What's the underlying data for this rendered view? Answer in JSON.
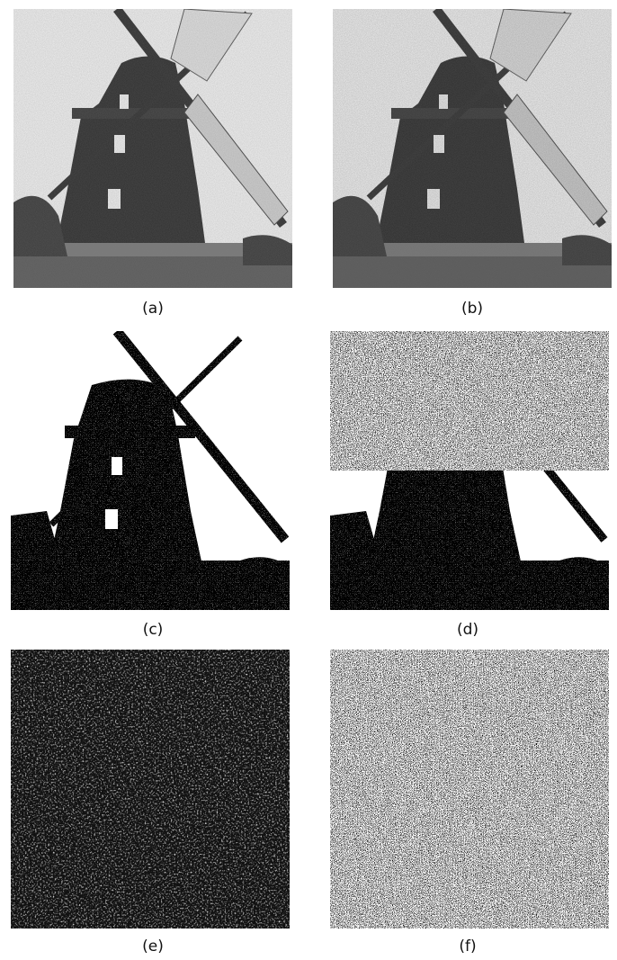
{
  "figure": {
    "panels": [
      {
        "id": "a",
        "label": "(a)",
        "content": "grayscale windmill photograph"
      },
      {
        "id": "b",
        "label": "(b)",
        "content": "grayscale windmill photograph"
      },
      {
        "id": "c",
        "label": "(c)",
        "content": "binary windmill image"
      },
      {
        "id": "d",
        "label": "(d)",
        "content": "binary windmill image with noisy upper region"
      },
      {
        "id": "e",
        "label": "(e)",
        "content": "grayscale noise texture"
      },
      {
        "id": "f",
        "label": "(f)",
        "content": "binary noise texture"
      }
    ]
  },
  "colors": {
    "dark": "#2e2e2e",
    "sky": "#f2f2f2",
    "black": "#000000",
    "white": "#ffffff"
  }
}
